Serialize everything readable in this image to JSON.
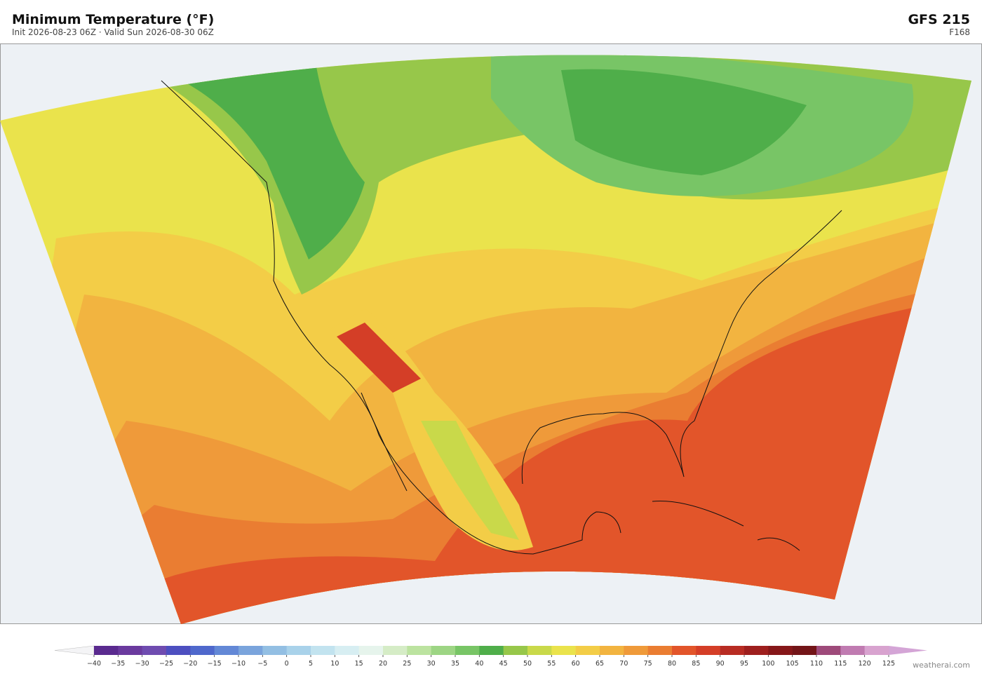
{
  "header": {
    "title": "Minimum Temperature  (°F)",
    "subtitle": "Init 2026-08-23 06Z  ·  Valid Sun 2026-08-30 06Z",
    "model": "GFS  215",
    "forecast_hour": "F168"
  },
  "colorbar": {
    "ticks": [
      {
        "value": -40,
        "label": "−40"
      },
      {
        "value": -35,
        "label": "−35"
      },
      {
        "value": -30,
        "label": "−30"
      },
      {
        "value": -25,
        "label": "−25"
      },
      {
        "value": -20,
        "label": "−20"
      },
      {
        "value": -15,
        "label": "−15"
      },
      {
        "value": -10,
        "label": "−10"
      },
      {
        "value": -5,
        "label": "−5"
      },
      0,
      5,
      10,
      15,
      20,
      25,
      30,
      35,
      40,
      45,
      50,
      55,
      60,
      65,
      70,
      75,
      80,
      85,
      90,
      95,
      100,
      105,
      110,
      115,
      120,
      125
    ],
    "colors": [
      "#5a2a8f",
      "#6a3a9e",
      "#6f4cb0",
      "#4d4fc0",
      "#4f68cc",
      "#6388d6",
      "#7aa4dc",
      "#93bfe3",
      "#a9d2ea",
      "#c2e3ef",
      "#d7eef2",
      "#e6f4ec",
      "#d5ecc6",
      "#bce3a0",
      "#9dd584",
      "#78c566",
      "#4fae4a",
      "#97c74a",
      "#c9d94a",
      "#eae34c",
      "#f3cd47",
      "#f2b440",
      "#ef9a3a",
      "#ea7d32",
      "#e2552a",
      "#d43e27",
      "#b82c23",
      "#9e1f1e",
      "#861719",
      "#731518",
      "#9e4a7a",
      "#c07bb1",
      "#d8a3cf"
    ],
    "under_color": "#f4f4f6",
    "over_color": "#d4a5d6"
  },
  "watermark": "weatherai.com"
}
